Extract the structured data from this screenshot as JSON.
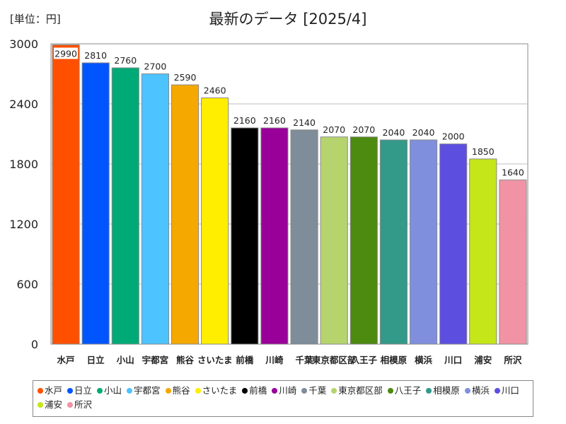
{
  "chart_data": {
    "type": "bar",
    "title": "最新のデータ [2025/4]",
    "unit_label": "[単位：円]",
    "xlabel": "",
    "ylabel": "",
    "ylim": [
      0,
      3000
    ],
    "yticks": [
      0,
      600,
      1200,
      1800,
      2400,
      3000
    ],
    "grid": true,
    "legend_position": "bottom",
    "categories": [
      "水戸",
      "日立",
      "小山",
      "宇都宮",
      "熊谷",
      "さいたま",
      "前橋",
      "川崎",
      "千葉",
      "東京都区部",
      "八王子",
      "相模原",
      "横浜",
      "川口",
      "浦安",
      "所沢"
    ],
    "values": [
      2990,
      2810,
      2760,
      2700,
      2590,
      2460,
      2160,
      2160,
      2140,
      2070,
      2070,
      2040,
      2040,
      2000,
      1850,
      1640
    ],
    "colors": [
      "#ff5000",
      "#0055ff",
      "#00aa77",
      "#4dc3ff",
      "#f5a800",
      "#ffee00",
      "#000000",
      "#990099",
      "#7f8c99",
      "#b5d46e",
      "#4c8a10",
      "#339988",
      "#7f8fdd",
      "#5c4fe0",
      "#c5e619",
      "#f293a5"
    ]
  }
}
